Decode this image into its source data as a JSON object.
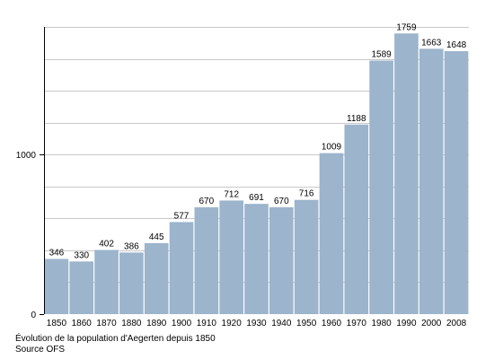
{
  "chart_data": {
    "type": "bar",
    "categories": [
      "1850",
      "1860",
      "1870",
      "1880",
      "1890",
      "1900",
      "1910",
      "1920",
      "1930",
      "1940",
      "1950",
      "1960",
      "1970",
      "1980",
      "1990",
      "2000",
      "2008"
    ],
    "values": [
      346,
      330,
      402,
      386,
      445,
      577,
      670,
      712,
      691,
      670,
      716,
      1009,
      1188,
      1589,
      1759,
      1663,
      1648
    ],
    "data_labels": [
      "346",
      "330",
      "402",
      "386",
      "445",
      "577",
      "670",
      "712",
      "691",
      "670",
      "716",
      "1009",
      "1188",
      "1589",
      "1759",
      "1663",
      "1648"
    ],
    "y_ticks": [
      0,
      1000
    ],
    "y_tick_labels": [
      "0",
      "1000"
    ],
    "ylim": [
      0,
      1800
    ],
    "minor_gridline_step": 200,
    "grid": true,
    "legend": "none",
    "bar_color": "#9cb4cc",
    "gridline_color": "#c8c8c8",
    "axis_color": "#000000"
  },
  "caption": {
    "line1": "Évolution de la population d'Aegerten depuis 1850",
    "line2": "Source OFS"
  }
}
